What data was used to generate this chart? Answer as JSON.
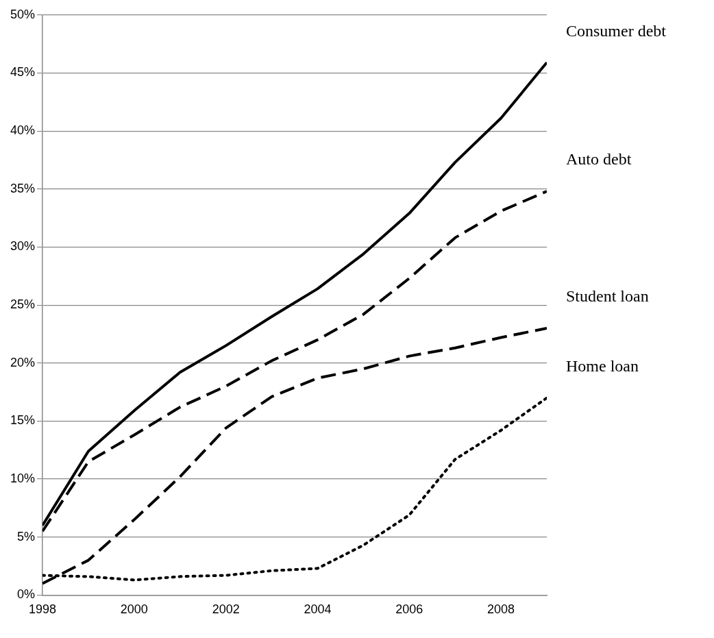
{
  "chart_data": {
    "type": "line",
    "x": [
      1998,
      1999,
      2000,
      2001,
      2002,
      2003,
      2004,
      2005,
      2006,
      2007,
      2008,
      2009
    ],
    "series": [
      {
        "name": "Consumer debt",
        "color": "#000000",
        "line_style": "solid",
        "values": [
          6.0,
          12.4,
          15.9,
          19.2,
          21.5,
          24.0,
          26.4,
          29.4,
          32.9,
          37.3,
          41.1,
          45.9
        ]
      },
      {
        "name": "Auto debt",
        "color": "#000000",
        "line_style": "dashed",
        "values": [
          5.5,
          11.5,
          13.8,
          16.2,
          18.0,
          20.2,
          22.0,
          24.2,
          27.3,
          30.8,
          33.1,
          34.8
        ]
      },
      {
        "name": "Student loan",
        "color": "#000000",
        "line_style": "dashed",
        "values": [
          1.0,
          3.0,
          6.5,
          10.2,
          14.4,
          17.1,
          18.7,
          19.5,
          20.6,
          21.3,
          22.2,
          23.0
        ]
      },
      {
        "name": "Home loan",
        "color": "#000000",
        "line_style": "dotted",
        "values": [
          1.7,
          1.6,
          1.3,
          1.6,
          1.7,
          2.1,
          2.3,
          4.3,
          6.9,
          11.7,
          14.2,
          17.0
        ]
      }
    ],
    "xlim": [
      1998,
      2009
    ],
    "xticks": [
      1998,
      2000,
      2002,
      2004,
      2006,
      2008
    ],
    "ylim": [
      0,
      50
    ],
    "yticks": [
      {
        "value": 0,
        "label": "0%"
      },
      {
        "value": 5,
        "label": "5%"
      },
      {
        "value": 10,
        "label": "10%"
      },
      {
        "value": 15,
        "label": "15%"
      },
      {
        "value": 20,
        "label": "20%"
      },
      {
        "value": 25,
        "label": "25%"
      },
      {
        "value": 30,
        "label": "30%"
      },
      {
        "value": 35,
        "label": "35%"
      },
      {
        "value": 40,
        "label": "40%"
      },
      {
        "value": 45,
        "label": "45%"
      },
      {
        "value": 50,
        "label": "50%"
      }
    ],
    "grid": "y",
    "legend": false,
    "marker": "none"
  }
}
